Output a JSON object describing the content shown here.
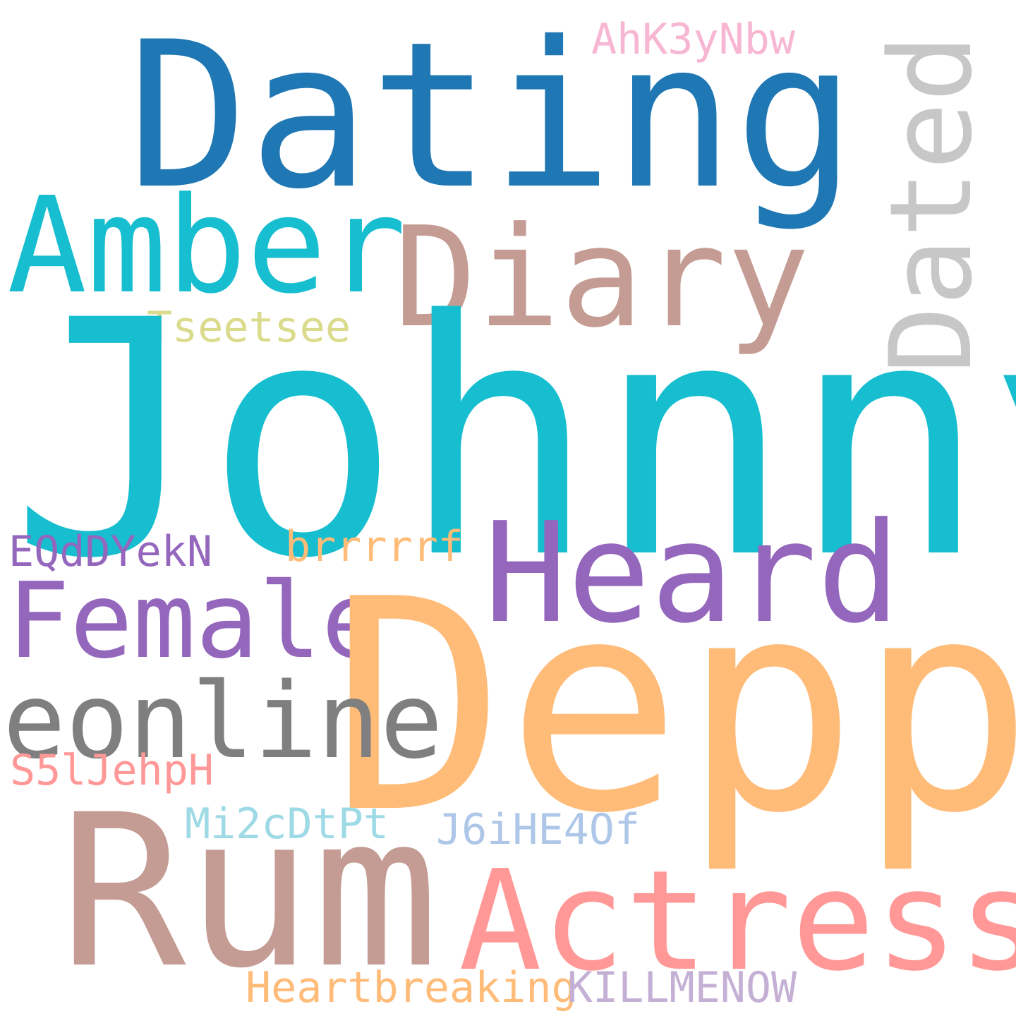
{
  "words": {
    "dating": {
      "text": "Dating",
      "color": "#1f77b4"
    },
    "dated": {
      "text": "Dated",
      "color": "#c7c7c7"
    },
    "ahk3ynbw": {
      "text": "AhK3yNbw",
      "color": "#f7b6d2"
    },
    "amber": {
      "text": "Amber",
      "color": "#17becf"
    },
    "diary": {
      "text": "Diary",
      "color": "#c49c94"
    },
    "tseetsee": {
      "text": "Tseetsee",
      "color": "#dbdb8d"
    },
    "johnny": {
      "text": "Johnny",
      "color": "#17becf"
    },
    "eqddyekn": {
      "text": "EQdDYekN",
      "color": "#9467bd"
    },
    "brrrrrf": {
      "text": "brrrrrf",
      "color": "#ffbb78"
    },
    "heard": {
      "text": "Heard",
      "color": "#9467bd"
    },
    "female": {
      "text": "Female",
      "color": "#9467bd"
    },
    "depp": {
      "text": "Depp",
      "color": "#ffbb78"
    },
    "eonline": {
      "text": "eonline",
      "color": "#7f7f7f"
    },
    "s5ljehph": {
      "text": "S5lJehpH",
      "color": "#ff9896"
    },
    "mi2cdtpt": {
      "text": "Mi2cDtPt",
      "color": "#9edae5"
    },
    "j6ihe4of": {
      "text": "J6iHE4Of",
      "color": "#aec7e8"
    },
    "rum": {
      "text": "Rum",
      "color": "#c49c94"
    },
    "actress": {
      "text": "Actress",
      "color": "#ff9896"
    },
    "heartbreaking": {
      "text": "Heartbreaking",
      "color": "#ffbb78"
    },
    "killmenow": {
      "text": "KILLMENOW",
      "color": "#c5b0d5"
    }
  },
  "background_color": "#ffffff"
}
